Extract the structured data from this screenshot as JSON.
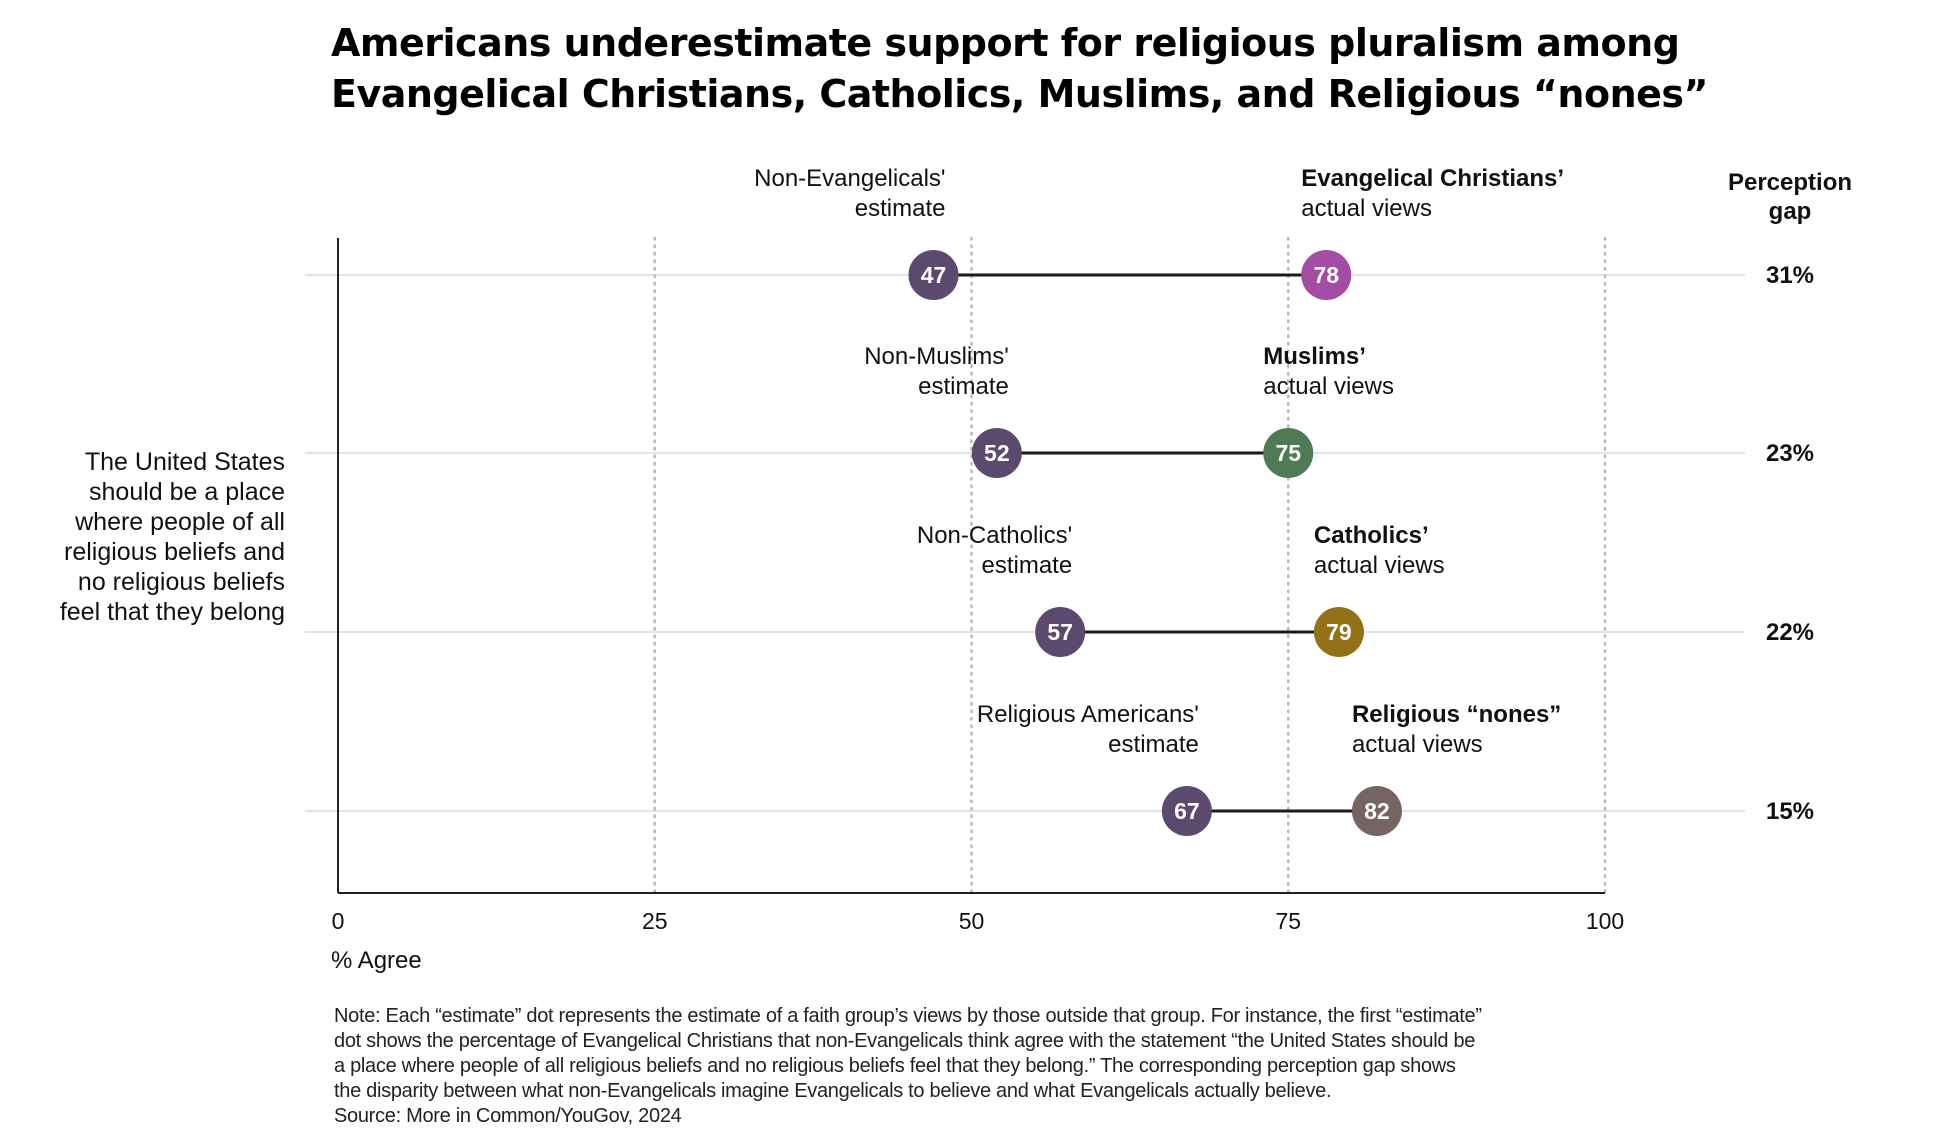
{
  "title": {
    "line1": "Americans underestimate support for religious pluralism among",
    "line2": "Evangelical Christians, Catholics, Muslims, and Religious “nones”"
  },
  "row_label": {
    "lines": [
      "The United States",
      "should be a place",
      "where people of all",
      "religious beliefs and",
      "no religious beliefs",
      "feel that they belong"
    ]
  },
  "gap_header": {
    "line1": "Perception",
    "line2": "gap"
  },
  "x_unit_label": "% Agree",
  "note": {
    "lines": [
      "Note: Each “estimate” dot represents the estimate of a faith group’s views by those outside that group. For instance, the first “estimate”",
      "dot shows the percentage of Evangelical Christians that non-Evangelicals think agree with the statement “the United States should be",
      "a place where people of all religious beliefs and no religious beliefs feel that they belong.” The corresponding perception gap shows",
      "the disparity between what non-Evangelicals imagine Evangelicals to believe and what Evangelicals actually believe."
    ],
    "source": "Source: More in Common/YouGov, 2024"
  },
  "chart_data": {
    "type": "dumbbell",
    "xlim": [
      0,
      100
    ],
    "x_ticks": [
      0,
      25,
      50,
      75,
      100
    ],
    "x_gridlines": [
      25,
      50,
      75,
      100
    ],
    "grid_style": "dotted vertical",
    "estimate_color": "#5b4a6e",
    "rows": [
      {
        "estimate_label": [
          "Non-Evangelicals'",
          "estimate"
        ],
        "actual_label": [
          "Evangelical Christians’",
          "actual views"
        ],
        "estimate": 47,
        "actual": 78,
        "gap": "31%",
        "actual_color": "#a24ca3"
      },
      {
        "estimate_label": [
          "Non-Muslims'",
          "estimate"
        ],
        "actual_label": [
          "Muslims’",
          "actual views"
        ],
        "estimate": 52,
        "actual": 75,
        "gap": "23%",
        "actual_color": "#4e7b56"
      },
      {
        "estimate_label": [
          "Non-Catholics'",
          "estimate"
        ],
        "actual_label": [
          "Catholics’",
          "actual views"
        ],
        "estimate": 57,
        "actual": 79,
        "gap": "22%",
        "actual_color": "#937117"
      },
      {
        "estimate_label": [
          "Religious Americans'",
          "estimate"
        ],
        "actual_label": [
          "Religious “nones”",
          "actual views"
        ],
        "estimate": 67,
        "actual": 82,
        "gap": "15%",
        "actual_color": "#766462"
      }
    ]
  }
}
